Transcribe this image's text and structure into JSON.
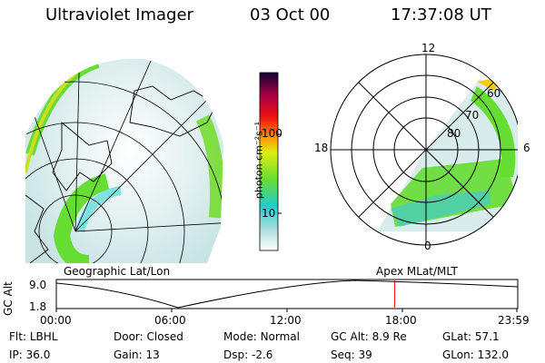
{
  "header": {
    "title": "Ultraviolet Imager",
    "date": "03 Oct 00",
    "time": "17:37:08 UT"
  },
  "colorbar": {
    "unit_label": "photon cm⁻²s⁻¹",
    "ticks": [
      "100",
      "10"
    ]
  },
  "maps": {
    "geographic_label": "Geographic Lat/Lon",
    "apex_label": "Apex MLat/MLT",
    "polar_mlt_labels": [
      "12",
      "18",
      "6",
      "0"
    ],
    "polar_lat_labels": [
      "60",
      "70",
      "80"
    ]
  },
  "timeline": {
    "axis_label": "GC Alt",
    "y_ticks": [
      "9.0",
      "1.8"
    ],
    "x_ticks": [
      "00:00",
      "06:00",
      "12:00",
      "18:00",
      "23:59"
    ],
    "marker_time": "17:37",
    "marker_color": "#ff0000"
  },
  "status": {
    "row1": [
      {
        "label": "Flt:",
        "value": "LBHL"
      },
      {
        "label": "Door:",
        "value": "Closed"
      },
      {
        "label": "Mode:",
        "value": "Normal"
      },
      {
        "label": "GC Alt:",
        "value": "8.9 Re"
      },
      {
        "label": "GLat:",
        "value": "57.1"
      }
    ],
    "row2": [
      {
        "label": "IP:",
        "value": "36.0"
      },
      {
        "label": "Gain:",
        "value": "13"
      },
      {
        "label": "Dsp:",
        "value": "-2.6"
      },
      {
        "label": "Seq:",
        "value": "39"
      },
      {
        "label": "GLon:",
        "value": "132.0"
      }
    ]
  },
  "colors": {
    "aurora_green": "#66dd33",
    "aurora_yellow": "#ccdd22",
    "aurora_cyan": "#66dddd",
    "background_noise": "#ccdddd"
  }
}
